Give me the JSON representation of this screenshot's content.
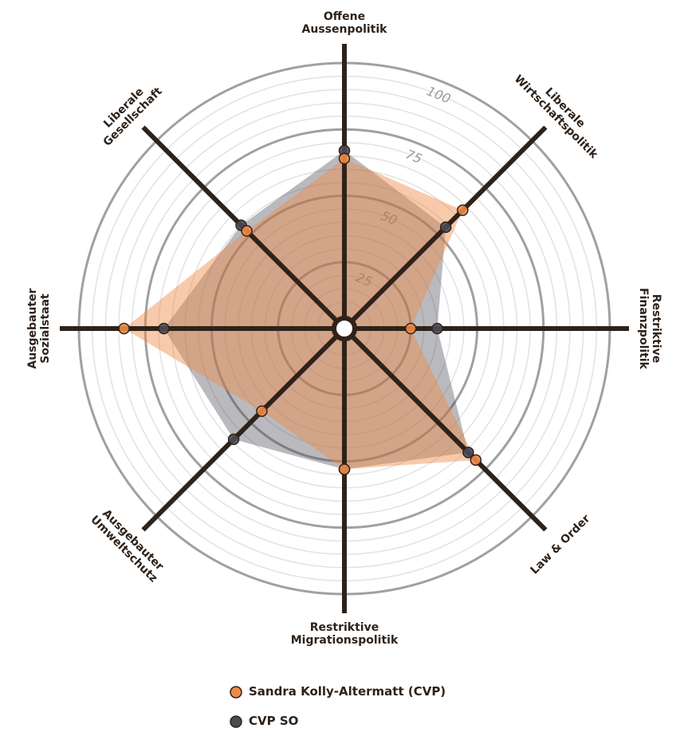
{
  "chart_data": {
    "type": "radar",
    "categories": [
      "Offene\nAussenpolitik",
      "Liberale\nWirtschaftspolitik",
      "Restriktive\nFinanzpolitik",
      "Law & Order",
      "Restriktive\nMigrationspolitik",
      "Ausgebauter\nUmweltschutz",
      "Ausgebauter\nSozialstaat",
      "Liberale\nGesellschaft"
    ],
    "series": [
      {
        "name": "CVP SO",
        "color": "#4a4a55",
        "values": [
          67,
          54,
          35,
          66,
          53,
          59,
          68,
          55
        ]
      },
      {
        "name": "Sandra Kolly-Altermatt (CVP)",
        "color": "#f08a46",
        "values": [
          64,
          63,
          25,
          70,
          53,
          44,
          83,
          52
        ]
      }
    ],
    "ylim": [
      0,
      100
    ],
    "yticks": [
      25,
      50,
      75,
      100
    ],
    "grid": true
  }
}
